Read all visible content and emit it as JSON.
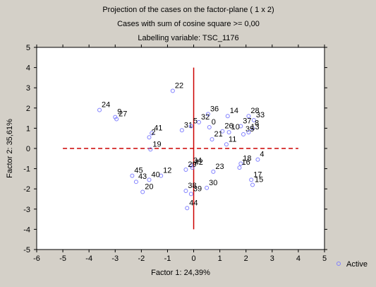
{
  "chart_data": {
    "type": "scatter",
    "title_lines": [
      "Projection of the cases on the factor-plane (  1 x   2)",
      "Cases with sum of cosine square >=  0,00",
      "Labelling variable: TSC_1176"
    ],
    "xlabel": "Factor 1: 24,39%",
    "ylabel": "Factor 2: 35,61%",
    "xlim": [
      -6,
      5
    ],
    "ylim": [
      -5,
      5
    ],
    "x_ticks": [
      -6,
      -5,
      -4,
      -3,
      -2,
      -1,
      0,
      1,
      2,
      3,
      4,
      5
    ],
    "y_ticks": [
      -5,
      -4,
      -3,
      -2,
      -1,
      0,
      1,
      2,
      3,
      4,
      5
    ],
    "reference_lines": {
      "horizontal": {
        "y": 0,
        "x_from": -5,
        "x_to": 4,
        "style": "dashed",
        "color": "#cc0000"
      },
      "vertical": {
        "x": 0,
        "y_from": -4,
        "y_to": 4,
        "style": "solid",
        "color": "#cc0000"
      }
    },
    "legend": {
      "label": "Active",
      "position": "bottom-right"
    },
    "marker_color": "#8080ff",
    "points": [
      {
        "label": "24",
        "x": -3.6,
        "y": 1.9
      },
      {
        "label": "9",
        "x": -3.0,
        "y": 1.55
      },
      {
        "label": "27",
        "x": -2.95,
        "y": 1.45
      },
      {
        "label": "22",
        "x": -0.8,
        "y": 2.85
      },
      {
        "label": "36",
        "x": 0.55,
        "y": 1.7
      },
      {
        "label": "14",
        "x": 1.3,
        "y": 1.6
      },
      {
        "label": "28",
        "x": 2.1,
        "y": 1.6
      },
      {
        "label": "33",
        "x": 2.3,
        "y": 1.4
      },
      {
        "label": "37",
        "x": 1.8,
        "y": 1.1
      },
      {
        "label": "8",
        "x": 2.25,
        "y": 1.0
      },
      {
        "label": "0",
        "x": 0.6,
        "y": 1.05
      },
      {
        "label": "31",
        "x": -0.45,
        "y": 0.9
      },
      {
        "label": "5",
        "x": -0.1,
        "y": 1.1
      },
      {
        "label": "32",
        "x": 0.2,
        "y": 1.3
      },
      {
        "label": "41",
        "x": -1.6,
        "y": 0.75
      },
      {
        "label": "2",
        "x": -1.7,
        "y": 0.55
      },
      {
        "label": "19",
        "x": -1.65,
        "y": -0.05
      },
      {
        "label": "26",
        "x": 1.1,
        "y": 0.85
      },
      {
        "label": "10",
        "x": 1.35,
        "y": 0.8
      },
      {
        "label": "35",
        "x": 1.9,
        "y": 0.7
      },
      {
        "label": "13",
        "x": 2.1,
        "y": 0.8
      },
      {
        "label": "21",
        "x": 0.7,
        "y": 0.45
      },
      {
        "label": "11",
        "x": 1.25,
        "y": 0.2
      },
      {
        "label": "4",
        "x": 2.45,
        "y": -0.55
      },
      {
        "label": "18",
        "x": 1.8,
        "y": -0.75
      },
      {
        "label": "16",
        "x": 1.75,
        "y": -0.95
      },
      {
        "label": "17",
        "x": 2.2,
        "y": -1.55
      },
      {
        "label": "15",
        "x": 2.25,
        "y": -1.8
      },
      {
        "label": "34",
        "x": -0.1,
        "y": -0.85
      },
      {
        "label": "42",
        "x": -0.05,
        "y": -0.95
      },
      {
        "label": "29",
        "x": -0.3,
        "y": -1.05
      },
      {
        "label": "23",
        "x": 0.75,
        "y": -1.15
      },
      {
        "label": "30",
        "x": 0.5,
        "y": -1.95
      },
      {
        "label": "38",
        "x": -0.3,
        "y": -2.1
      },
      {
        "label": "39",
        "x": -0.1,
        "y": -2.25
      },
      {
        "label": "44",
        "x": -0.25,
        "y": -2.95
      },
      {
        "label": "12",
        "x": -1.25,
        "y": -1.35
      },
      {
        "label": "45",
        "x": -2.35,
        "y": -1.35
      },
      {
        "label": "43",
        "x": -2.2,
        "y": -1.65
      },
      {
        "label": "40",
        "x": -1.7,
        "y": -1.55
      },
      {
        "label": "20",
        "x": -1.95,
        "y": -2.15
      }
    ]
  }
}
